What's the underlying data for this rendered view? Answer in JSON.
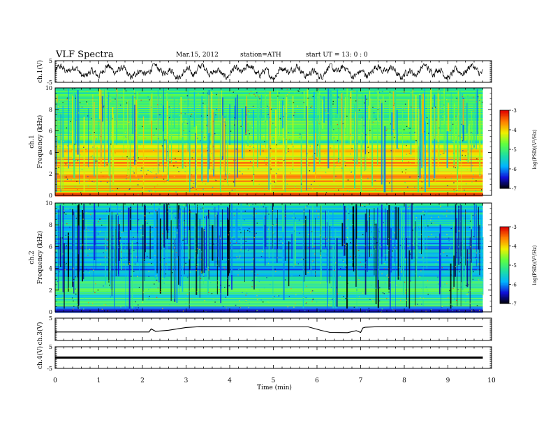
{
  "header": {
    "title": "VLF  Spectra",
    "date": "Mar.15, 2012",
    "station": "station=ATH",
    "start": "start  UT  =   13: 0  : 0"
  },
  "colors": {
    "colormap": [
      "#000000",
      "#1010d8",
      "#00b4ff",
      "#20e0a0",
      "#60ff40",
      "#f0f000",
      "#ff8000",
      "#e00000",
      "#ffffff"
    ]
  },
  "chart_data": [
    {
      "type": "line",
      "id": "ch1",
      "ylabel": "ch.1(V)",
      "ylim": [
        -5,
        5
      ],
      "yticks": [
        {
          "v": 5,
          "label": "5"
        },
        {
          "v": -5,
          "label": "-5"
        }
      ],
      "xlim": [
        0,
        10
      ],
      "description_series": "dense waveform oscillating roughly between -3 and 3 V over 0–9.8 min"
    },
    {
      "type": "heatmap",
      "id": "ch1-spec",
      "ylabel_line1": "ch.1",
      "ylabel_line2": "Frequency  (kHz)",
      "ylim": [
        0,
        10
      ],
      "yticks": [
        {
          "v": 0,
          "label": "0"
        },
        {
          "v": 2,
          "label": "2"
        },
        {
          "v": 4,
          "label": "4"
        },
        {
          "v": 6,
          "label": "6"
        },
        {
          "v": 8,
          "label": "8"
        },
        {
          "v": 10,
          "label": "10"
        }
      ],
      "xlim": [
        0,
        9.8
      ],
      "colorbar": {
        "label": "log(PSD)(V²/Hz)",
        "range": [
          -7,
          -3
        ],
        "ticks": [
          {
            "v": -3,
            "label": "-3"
          },
          {
            "v": -4,
            "label": "-4"
          },
          {
            "v": -5,
            "label": "-5"
          },
          {
            "v": -6,
            "label": "-6"
          },
          {
            "v": -7,
            "label": "-7"
          }
        ]
      },
      "bands": [
        {
          "f0": 0.0,
          "f1": 0.3,
          "level": -3.6
        },
        {
          "f0": 0.3,
          "f1": 1.2,
          "level": -4.0
        },
        {
          "f0": 1.2,
          "f1": 3.6,
          "level": -3.9
        },
        {
          "f0": 3.6,
          "f1": 4.9,
          "level": -4.3
        },
        {
          "f0": 4.9,
          "f1": 6.6,
          "level": -4.9
        },
        {
          "f0": 6.6,
          "f1": 10.0,
          "level": -5.0
        }
      ]
    },
    {
      "type": "heatmap",
      "id": "ch2-spec",
      "ylabel_line1": "ch.2",
      "ylabel_line2": "Frequency  (kHz)",
      "ylim": [
        0,
        10
      ],
      "yticks": [
        {
          "v": 0,
          "label": "0"
        },
        {
          "v": 2,
          "label": "2"
        },
        {
          "v": 4,
          "label": "4"
        },
        {
          "v": 6,
          "label": "6"
        },
        {
          "v": 8,
          "label": "8"
        },
        {
          "v": 10,
          "label": "10"
        }
      ],
      "xlim": [
        0,
        9.8
      ],
      "colorbar": {
        "label": "log(PSD)(V²/Hz)",
        "range": [
          -7,
          -3
        ],
        "ticks": [
          {
            "v": -3,
            "label": "-3"
          },
          {
            "v": -4,
            "label": "-4"
          },
          {
            "v": -5,
            "label": "-5"
          },
          {
            "v": -6,
            "label": "-6"
          },
          {
            "v": -7,
            "label": "-7"
          }
        ]
      },
      "bands": [
        {
          "f0": 0.0,
          "f1": 0.5,
          "level": -6.3
        },
        {
          "f0": 0.5,
          "f1": 3.0,
          "level": -5.2
        },
        {
          "f0": 3.0,
          "f1": 6.8,
          "level": -5.8
        },
        {
          "f0": 6.8,
          "f1": 10.0,
          "level": -5.6
        }
      ]
    },
    {
      "type": "line",
      "id": "ch3",
      "ylabel": "ch.3(V)",
      "ylim": [
        -5,
        5
      ],
      "yticks": [
        {
          "v": 5,
          "label": "5"
        }
      ],
      "xlim": [
        0,
        10
      ],
      "x": [
        0,
        2.15,
        2.2,
        2.3,
        2.6,
        3.0,
        3.3,
        5.8,
        6.1,
        6.3,
        6.7,
        6.9,
        7.0,
        7.05,
        7.1,
        7.4,
        8.0,
        9.8
      ],
      "y": [
        -1.2,
        -1.2,
        0.2,
        -0.9,
        -0.4,
        0.8,
        1.2,
        1.1,
        -0.5,
        -1.4,
        -1.5,
        -0.6,
        -1.4,
        0.6,
        0.9,
        1.2,
        1.3,
        1.3
      ]
    },
    {
      "type": "line",
      "id": "ch4",
      "ylabel": "ch.4(V)",
      "ylim": [
        -5,
        5
      ],
      "yticks": [
        {
          "v": 5,
          "label": "5"
        },
        {
          "v": -5,
          "label": "-5"
        }
      ],
      "xlim": [
        0,
        10
      ],
      "x": [
        0,
        9.8
      ],
      "y": [
        0,
        0
      ]
    }
  ],
  "xaxis": {
    "label": "Time  (min)",
    "ticks": [
      {
        "v": 0,
        "label": "0"
      },
      {
        "v": 1,
        "label": "1"
      },
      {
        "v": 2,
        "label": "2"
      },
      {
        "v": 3,
        "label": "3"
      },
      {
        "v": 4,
        "label": "4"
      },
      {
        "v": 5,
        "label": "5"
      },
      {
        "v": 6,
        "label": "6"
      },
      {
        "v": 7,
        "label": "7"
      },
      {
        "v": 8,
        "label": "8"
      },
      {
        "v": 9,
        "label": "9"
      },
      {
        "v": 10,
        "label": "10"
      }
    ]
  }
}
